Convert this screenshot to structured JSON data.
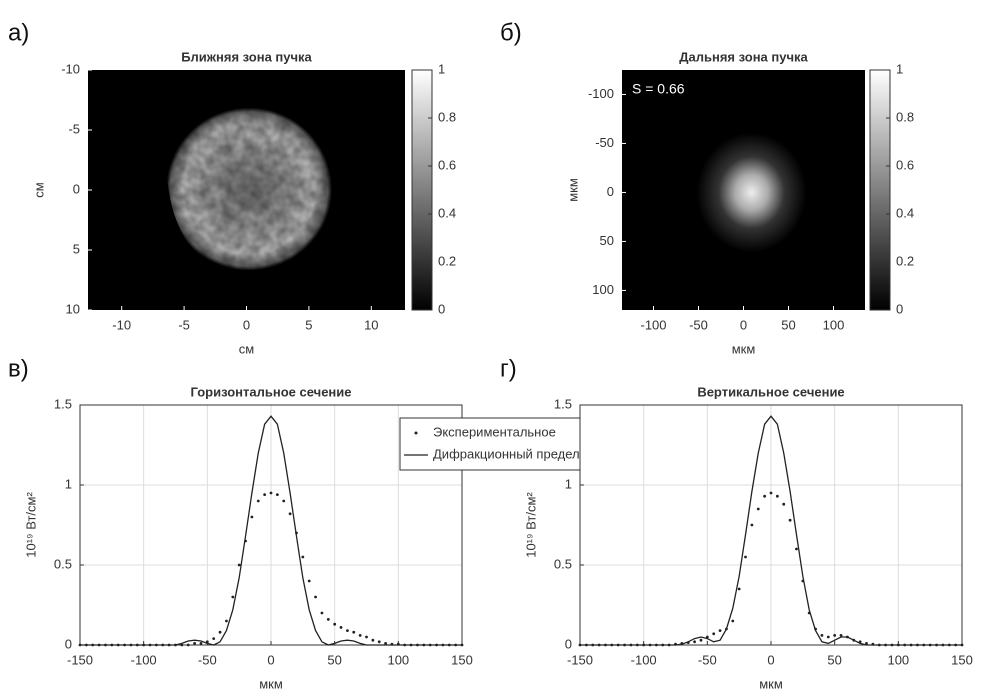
{
  "chart_data": [
    {
      "type": "heatmap",
      "panel_label": "а)",
      "title": "Ближняя зона пучка",
      "xlabel": "см",
      "ylabel": "см",
      "xlim": [
        -12.7,
        12.7
      ],
      "xticks": [
        -10,
        -5,
        0,
        5,
        10
      ],
      "ylim": [
        -10,
        10
      ],
      "yticks": [
        -10,
        -5,
        0,
        5,
        10
      ],
      "ydir": "reverse",
      "clim": [
        0,
        1
      ],
      "cticks": [
        0,
        0.2,
        0.4,
        0.6,
        0.8,
        1
      ],
      "colormap": "gray",
      "spot": "wide"
    },
    {
      "type": "heatmap",
      "panel_label": "б)",
      "title": "Дальняя зона пучка",
      "ylabel": "мкм",
      "xlabel": "мкм",
      "annotation": "S = 0.66",
      "xlim": [
        -135,
        135
      ],
      "xticks": [
        -100,
        -50,
        0,
        50,
        100
      ],
      "ylim": [
        -125,
        120
      ],
      "yticks": [
        -100,
        -50,
        0,
        50,
        100
      ],
      "ydir": "reverse",
      "clim": [
        0,
        1
      ],
      "cticks": [
        0,
        0.2,
        0.4,
        0.6,
        0.8,
        1
      ],
      "colormap": "gray",
      "spot": "narrow"
    },
    {
      "type": "line",
      "panel_label": "в)",
      "title": "Горизонтальное сечение",
      "xlabel": "мкм",
      "ylabel": "10¹⁹ Вт/см²",
      "xlim": [
        -150,
        150
      ],
      "xticks": [
        -150,
        -100,
        -50,
        0,
        50,
        100,
        150
      ],
      "ylim": [
        0,
        1.5
      ],
      "yticks": [
        0,
        0.5,
        1,
        1.5
      ],
      "grid": true,
      "legend": "northeast",
      "x": [
        -150,
        -145,
        -140,
        -135,
        -130,
        -125,
        -120,
        -115,
        -110,
        -105,
        -100,
        -95,
        -90,
        -85,
        -80,
        -75,
        -70,
        -65,
        -60,
        -55,
        -50,
        -45,
        -40,
        -35,
        -30,
        -25,
        -20,
        -15,
        -10,
        -5,
        0,
        5,
        10,
        15,
        20,
        25,
        30,
        35,
        40,
        45,
        50,
        55,
        60,
        65,
        70,
        75,
        80,
        85,
        90,
        95,
        100,
        105,
        110,
        115,
        120,
        125,
        130,
        135,
        140,
        145,
        150
      ],
      "series": [
        {
          "name": "Экспериментальное",
          "style": "dots",
          "color": "#222222",
          "values": [
            0,
            0,
            0,
            0,
            0,
            0,
            0,
            0,
            0,
            0,
            0,
            0,
            0,
            0,
            0,
            0,
            0,
            0,
            0.01,
            0.01,
            0.02,
            0.04,
            0.08,
            0.15,
            0.3,
            0.5,
            0.65,
            0.8,
            0.9,
            0.94,
            0.95,
            0.94,
            0.9,
            0.82,
            0.7,
            0.55,
            0.4,
            0.3,
            0.2,
            0.16,
            0.13,
            0.11,
            0.09,
            0.08,
            0.06,
            0.05,
            0.03,
            0.02,
            0.01,
            0.005,
            0.005,
            0,
            0,
            0,
            0,
            0,
            0,
            0,
            0,
            0,
            0
          ]
        },
        {
          "name": "Дифракционный предел",
          "style": "line",
          "color": "#222222",
          "values": [
            0,
            0,
            0,
            0,
            0,
            0,
            0,
            0,
            0,
            0,
            0,
            0,
            0,
            0,
            0,
            0,
            0.01,
            0.025,
            0.03,
            0.025,
            0.01,
            0,
            0.02,
            0.09,
            0.22,
            0.42,
            0.68,
            0.95,
            1.2,
            1.38,
            1.43,
            1.38,
            1.2,
            0.95,
            0.68,
            0.42,
            0.22,
            0.09,
            0.02,
            0,
            0.01,
            0.025,
            0.03,
            0.025,
            0.01,
            0,
            0,
            0,
            0,
            0,
            0,
            0,
            0,
            0,
            0,
            0,
            0,
            0,
            0,
            0,
            0
          ]
        }
      ]
    },
    {
      "type": "line",
      "panel_label": "г)",
      "title": "Вертикальное сечение",
      "xlabel": "мкм",
      "ylabel": "10¹⁹ Вт/см²",
      "xlim": [
        -150,
        150
      ],
      "xticks": [
        -150,
        -100,
        -50,
        0,
        50,
        100,
        150
      ],
      "ylim": [
        0,
        1.5
      ],
      "yticks": [
        0,
        0.5,
        1,
        1.5
      ],
      "grid": true,
      "x": [
        -150,
        -145,
        -140,
        -135,
        -130,
        -125,
        -120,
        -115,
        -110,
        -105,
        -100,
        -95,
        -90,
        -85,
        -80,
        -75,
        -70,
        -65,
        -60,
        -55,
        -50,
        -45,
        -40,
        -35,
        -30,
        -25,
        -20,
        -15,
        -10,
        -5,
        0,
        5,
        10,
        15,
        20,
        25,
        30,
        35,
        40,
        45,
        50,
        55,
        60,
        65,
        70,
        75,
        80,
        85,
        90,
        95,
        100,
        105,
        110,
        115,
        120,
        125,
        130,
        135,
        140,
        145,
        150
      ],
      "series": [
        {
          "style": "dots",
          "color": "#222222",
          "values": [
            0,
            0,
            0,
            0,
            0,
            0,
            0,
            0,
            0,
            0,
            0,
            0,
            0,
            0,
            0,
            0.005,
            0.01,
            0.015,
            0.02,
            0.03,
            0.05,
            0.07,
            0.09,
            0.1,
            0.15,
            0.35,
            0.55,
            0.75,
            0.85,
            0.93,
            0.95,
            0.93,
            0.88,
            0.78,
            0.6,
            0.4,
            0.2,
            0.1,
            0.06,
            0.05,
            0.06,
            0.06,
            0.05,
            0.03,
            0.02,
            0.01,
            0.005,
            0,
            0,
            0,
            0,
            0,
            0,
            0,
            0,
            0,
            0,
            0,
            0,
            0,
            0
          ]
        },
        {
          "style": "line",
          "color": "#222222",
          "values": [
            0,
            0,
            0,
            0,
            0,
            0,
            0,
            0,
            0,
            0,
            0,
            0,
            0,
            0,
            0,
            0,
            0.005,
            0.02,
            0.04,
            0.05,
            0.04,
            0.02,
            0.03,
            0.1,
            0.23,
            0.43,
            0.69,
            0.96,
            1.2,
            1.38,
            1.43,
            1.38,
            1.2,
            0.96,
            0.69,
            0.43,
            0.22,
            0.09,
            0.02,
            0.01,
            0.03,
            0.05,
            0.05,
            0.03,
            0.01,
            0,
            0,
            0,
            0,
            0,
            0,
            0,
            0,
            0,
            0,
            0,
            0,
            0,
            0,
            0,
            0
          ]
        }
      ]
    }
  ]
}
